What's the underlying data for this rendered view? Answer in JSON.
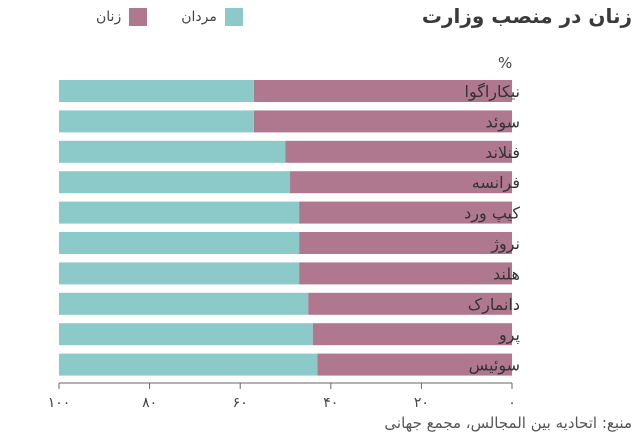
{
  "title": "زنان در منصب وزارت",
  "unit": "%",
  "source": "منبع: اتحادیه بین المجالس، مجمع جهانی",
  "colors": {
    "women": "#b0788f",
    "men": "#8ccaca"
  },
  "legend": [
    {
      "key": "men",
      "label": "مردان"
    },
    {
      "key": "women",
      "label": "زنان"
    }
  ],
  "chart_data": {
    "type": "bar",
    "orientation": "horizontal",
    "stacked": true,
    "title": "زنان در منصب وزارت",
    "categories": [
      "نیکاراگوا",
      "سوئد",
      "فنلاند",
      "فرانسه",
      "کیپ ورد",
      "نروژ",
      "هلند",
      "دانمارک",
      "پرو",
      "سوئیس"
    ],
    "series": [
      {
        "name": "زنان",
        "values": [
          57,
          57,
          50,
          49,
          47,
          47,
          47,
          45,
          44,
          43
        ]
      },
      {
        "name": "مردان",
        "values": [
          43,
          43,
          50,
          51,
          53,
          53,
          53,
          55,
          56,
          57
        ]
      }
    ],
    "xlim": [
      0,
      100
    ],
    "x_ticks": [
      0,
      20,
      40,
      60,
      80,
      100
    ],
    "x_tick_labels": [
      "۰",
      "۲۰",
      "۴۰",
      "۶۰",
      "۸۰",
      "۱۰۰"
    ],
    "x_direction": "right-to-left",
    "legend_position": "top-left",
    "grid": false
  }
}
